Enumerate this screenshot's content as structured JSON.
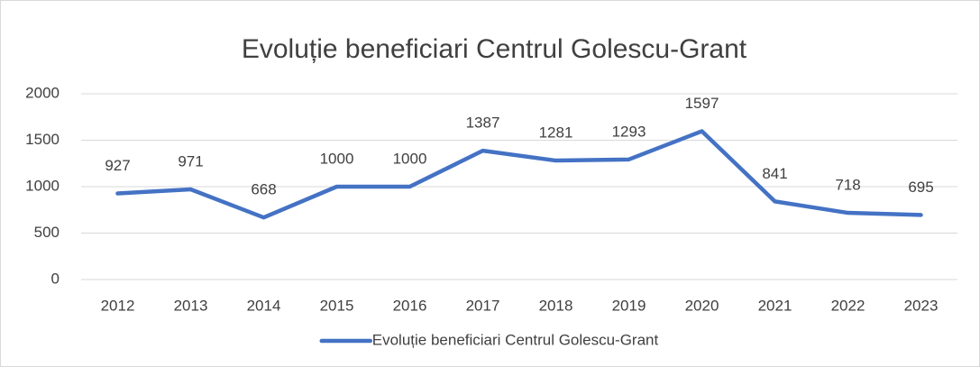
{
  "chart_data": {
    "type": "line",
    "title": "Evoluție beneficiari Centrul Golescu-Grant",
    "categories": [
      "2012",
      "2013",
      "2014",
      "2015",
      "2016",
      "2017",
      "2018",
      "2019",
      "2020",
      "2021",
      "2022",
      "2023"
    ],
    "series": [
      {
        "name": "Evoluție beneficiari Centrul Golescu-Grant",
        "color": "#4472c4",
        "values": [
          927,
          971,
          668,
          1000,
          1000,
          1387,
          1281,
          1293,
          1597,
          841,
          718,
          695
        ]
      }
    ],
    "ylim": [
      0,
      2000
    ],
    "yticks": [
      0,
      500,
      1000,
      1500,
      2000
    ],
    "grid": true,
    "legend": "bottom"
  }
}
